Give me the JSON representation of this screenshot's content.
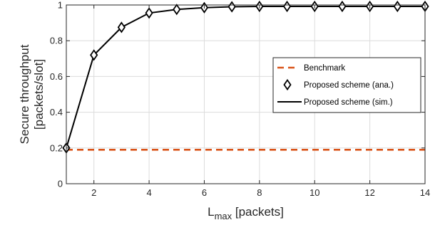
{
  "chart_data": {
    "type": "line",
    "title": "",
    "xlabel_main": "L",
    "xlabel_sub": "max",
    "xlabel_unit": " [packets]",
    "ylabel_line1": "Secure throughput",
    "ylabel_line2": "[packets/slot]",
    "xlim": [
      1,
      14
    ],
    "ylim": [
      0,
      1
    ],
    "xticks": [
      2,
      4,
      6,
      8,
      10,
      12,
      14
    ],
    "yticks": [
      0,
      0.2,
      0.4,
      0.6,
      0.8,
      1
    ],
    "ytick_labels": [
      "0",
      "0.2",
      "0.4",
      "0.6",
      "0.8",
      "1"
    ],
    "grid": true,
    "legend_position": "center-right",
    "x": [
      1,
      2,
      3,
      4,
      5,
      6,
      7,
      8,
      9,
      10,
      11,
      12,
      13,
      14
    ],
    "series": [
      {
        "name": "Benchmark",
        "style": "dashed",
        "color": "#D95319",
        "values": [
          0.19,
          0.19,
          0.19,
          0.19,
          0.19,
          0.19,
          0.19,
          0.19,
          0.19,
          0.19,
          0.19,
          0.19,
          0.19,
          0.19
        ]
      },
      {
        "name": "Proposed scheme (ana.)",
        "style": "diamond-markers",
        "color": "#000000",
        "values": [
          0.2,
          0.72,
          0.875,
          0.955,
          0.975,
          0.985,
          0.99,
          0.992,
          0.992,
          0.992,
          0.992,
          0.992,
          0.992,
          0.992
        ]
      },
      {
        "name": "Proposed scheme (sim.)",
        "style": "solid",
        "color": "#000000",
        "values": [
          0.2,
          0.72,
          0.875,
          0.955,
          0.975,
          0.985,
          0.99,
          0.992,
          0.992,
          0.992,
          0.992,
          0.992,
          0.992,
          0.992
        ]
      }
    ]
  }
}
